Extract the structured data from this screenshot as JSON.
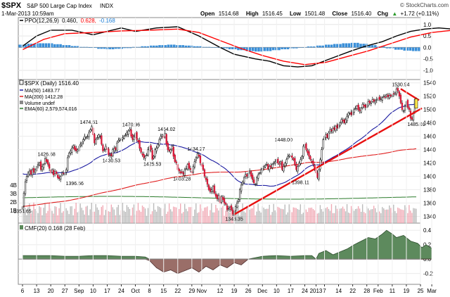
{
  "header": {
    "symbol": "$SPX",
    "name": "S&P 500 Large Cap Index",
    "exchange": "INDX",
    "datetime": "1-Mar-2013 10:59am",
    "open_label": "Open",
    "open": "1514.68",
    "high_label": "High",
    "high": "1516.45",
    "low_label": "Low",
    "low": "1501.48",
    "close_label": "Close",
    "close": "1516.40",
    "change_label": "Chg",
    "change": "+1.72 (+0.11%)",
    "up_arrow": "▲",
    "credit": "© StockCharts.com"
  },
  "chart_data": [
    {
      "type": "line",
      "panel": "PPO",
      "legend": {
        "ppo": "PPO(12,26,9)",
        "ppo_value": "0.460,",
        "signal_value": "0.628,",
        "hist_value": "-0.168"
      },
      "ylim": [
        -1.4,
        1.3
      ],
      "y_ticks": [
        "1.0",
        "0.5",
        "0.0",
        "-0.5",
        "-1.0"
      ],
      "series": [
        {
          "name": "PPO(12,26,9)",
          "color": "#000000",
          "points": [
            [
              0,
              0.05
            ],
            [
              10,
              0.5
            ],
            [
              20,
              0.75
            ],
            [
              35,
              0.75
            ],
            [
              50,
              0.55
            ],
            [
              60,
              0.7
            ],
            [
              70,
              0.85
            ],
            [
              80,
              0.7
            ],
            [
              95,
              0.85
            ],
            [
              110,
              0.9
            ],
            [
              125,
              0.5
            ],
            [
              140,
              0.0
            ],
            [
              150,
              -0.3
            ],
            [
              165,
              -0.5
            ],
            [
              175,
              -0.6
            ],
            [
              185,
              -0.8
            ],
            [
              195,
              -0.85
            ],
            [
              205,
              -0.8
            ],
            [
              220,
              -0.45
            ],
            [
              233,
              -0.15
            ],
            [
              243,
              0.05
            ],
            [
              255,
              0.25
            ],
            [
              265,
              0.5
            ],
            [
              275,
              0.7
            ],
            [
              285,
              0.8
            ],
            [
              295,
              0.85
            ],
            [
              305,
              0.8
            ],
            [
              320,
              0.7
            ],
            [
              330,
              0.6
            ]
          ]
        },
        {
          "name": "Signal",
          "color": "#ff0000",
          "points": [
            [
              0,
              -0.1
            ],
            [
              15,
              0.35
            ],
            [
              30,
              0.6
            ],
            [
              50,
              0.65
            ],
            [
              70,
              0.72
            ],
            [
              90,
              0.75
            ],
            [
              110,
              0.8
            ],
            [
              125,
              0.65
            ],
            [
              140,
              0.3
            ],
            [
              155,
              -0.05
            ],
            [
              170,
              -0.35
            ],
            [
              185,
              -0.6
            ],
            [
              200,
              -0.75
            ],
            [
              215,
              -0.65
            ],
            [
              230,
              -0.4
            ],
            [
              245,
              -0.15
            ],
            [
              260,
              0.15
            ],
            [
              275,
              0.45
            ],
            [
              290,
              0.65
            ],
            [
              305,
              0.75
            ],
            [
              320,
              0.75
            ],
            [
              330,
              0.75
            ]
          ]
        }
      ],
      "histogram": [
        0.12,
        0.16,
        0.18,
        0.18,
        0.14,
        0.1,
        0.06,
        0.02,
        -0.02,
        -0.06,
        -0.08,
        -0.06,
        -0.03,
        0.02,
        0.05,
        0.08,
        0.1,
        0.12,
        0.1,
        0.08,
        0.05,
        0.02,
        0.0,
        -0.04,
        -0.08,
        -0.12,
        -0.16,
        -0.18,
        -0.16,
        -0.12,
        -0.08,
        -0.04,
        0.0,
        0.04,
        0.08,
        0.12,
        0.15,
        0.18,
        0.2,
        0.16,
        0.1,
        0.04,
        -0.04,
        -0.1,
        -0.14,
        -0.16
      ]
    },
    {
      "type": "candlestick",
      "panel": "Price",
      "legend": {
        "price": "$SPX (Daily) 1516.40",
        "ma50": "MA(50) 1483.77",
        "ma200": "MA(200) 1412.28",
        "volume": "Volume undef",
        "ema60": "EMA(60) 2,579,574,016"
      },
      "ylim": [
        1330,
        1545
      ],
      "y_ticks": [
        "1540",
        "1520",
        "1500",
        "1480",
        "1460",
        "1440",
        "1420",
        "1400",
        "1380",
        "1360",
        "1340"
      ],
      "volume_ticks": [
        "4B",
        "3B",
        "2B",
        "1B"
      ],
      "annotations": [
        {
          "text": "1354.65",
          "x": 0,
          "y": 1354.65
        },
        {
          "text": "1426.68",
          "x": 17,
          "y": 1426.68
        },
        {
          "text": "1396.56",
          "x": 37,
          "y": 1396.56
        },
        {
          "text": "1474.51",
          "x": 47,
          "y": 1474.51
        },
        {
          "text": "1430.53",
          "x": 63,
          "y": 1430.53
        },
        {
          "text": "1470.96",
          "x": 77,
          "y": 1470.96
        },
        {
          "text": "1425.53",
          "x": 92,
          "y": 1425.53
        },
        {
          "text": "1464.02",
          "x": 102,
          "y": 1464.02
        },
        {
          "text": "1403.28",
          "x": 113,
          "y": 1403.28
        },
        {
          "text": "1434.27",
          "x": 123,
          "y": 1434.27
        },
        {
          "text": "1343.35",
          "x": 150,
          "y": 1343.35
        },
        {
          "text": "1448.00",
          "x": 185,
          "y": 1448.0
        },
        {
          "text": "1398.11",
          "x": 197,
          "y": 1398.11
        },
        {
          "text": "1530.94",
          "x": 268,
          "y": 1530.94
        },
        {
          "text": "1485.01",
          "x": 279,
          "y": 1485.01
        }
      ],
      "close": [
        1354.65,
        1375,
        1392,
        1400,
        1405,
        1408,
        1403,
        1410,
        1406,
        1410,
        1415,
        1418,
        1420,
        1410,
        1415,
        1418,
        1426.68,
        1422,
        1418,
        1412,
        1405,
        1410,
        1402,
        1407,
        1404,
        1398,
        1396.56,
        1400,
        1405,
        1404,
        1405,
        1410,
        1428,
        1435,
        1438,
        1442,
        1446,
        1440,
        1438,
        1440,
        1445,
        1448,
        1450,
        1455,
        1460,
        1458,
        1460,
        1465,
        1470,
        1474.51,
        1462,
        1450,
        1455,
        1458,
        1462,
        1460,
        1448,
        1438,
        1440,
        1445,
        1440,
        1432,
        1432,
        1430.53,
        1440,
        1442,
        1440,
        1450,
        1454,
        1456,
        1455,
        1458,
        1460,
        1462,
        1465,
        1468,
        1470.96,
        1460,
        1455,
        1460,
        1465,
        1455,
        1452,
        1442,
        1436,
        1432,
        1428,
        1430,
        1432,
        1440,
        1445,
        1440,
        1425.53,
        1430,
        1440,
        1442,
        1448,
        1455,
        1460,
        1462,
        1458,
        1464.02,
        1448,
        1440,
        1438,
        1440,
        1445,
        1430,
        1422,
        1420,
        1410,
        1408,
        1405,
        1406,
        1403.28,
        1410,
        1412,
        1418,
        1412,
        1410,
        1405,
        1415,
        1422,
        1428,
        1434.27,
        1430,
        1420,
        1415,
        1410,
        1400,
        1395,
        1388,
        1380,
        1377,
        1380,
        1385,
        1375,
        1370,
        1366,
        1372,
        1360,
        1370,
        1365,
        1360,
        1358,
        1350,
        1352,
        1354,
        1350,
        1343.35,
        1348,
        1355,
        1360,
        1365,
        1380,
        1387,
        1392,
        1398,
        1403,
        1400,
        1405,
        1408,
        1400,
        1395,
        1390,
        1388,
        1398,
        1402,
        1405,
        1410,
        1412,
        1415,
        1416,
        1418,
        1412,
        1415,
        1414,
        1418,
        1420,
        1422,
        1425,
        1420,
        1418,
        1422,
        1410,
        1415,
        1420,
        1425,
        1430,
        1432,
        1430,
        1428,
        1425,
        1418,
        1410,
        1415,
        1420,
        1425,
        1430,
        1445,
        1448.0,
        1440,
        1435,
        1430,
        1425,
        1422,
        1418,
        1412,
        1405,
        1398.11,
        1410,
        1425,
        1440,
        1455,
        1460,
        1462,
        1458,
        1465,
        1470,
        1468,
        1472,
        1470,
        1475,
        1472,
        1478,
        1480,
        1485,
        1483,
        1480,
        1485,
        1490,
        1495,
        1494,
        1492,
        1498,
        1500,
        1502,
        1505,
        1500,
        1498,
        1502,
        1508,
        1505,
        1503,
        1508,
        1512,
        1510,
        1510,
        1515,
        1512,
        1513,
        1515,
        1517,
        1515,
        1516,
        1518,
        1520,
        1518,
        1522,
        1519,
        1521,
        1520,
        1522,
        1523,
        1525,
        1530.94,
        1528,
        1520,
        1510,
        1500,
        1498,
        1505,
        1512,
        1503,
        1500,
        1487,
        1485.01,
        1495,
        1515,
        1516.4
      ]
    },
    {
      "type": "area",
      "panel": "CMF",
      "legend": "CMF(20) 0.168 (28 Feb)",
      "ylim": [
        -0.35,
        0.5
      ],
      "y_ticks": [
        "0.4",
        "0.2",
        "0.0",
        "-0.2"
      ],
      "series": [
        {
          "name": "CMF(20) 0.168 (28 Feb)",
          "points": [
            [
              0,
              0.05
            ],
            [
              10,
              0.05
            ],
            [
              20,
              0.05
            ],
            [
              30,
              0.04
            ],
            [
              40,
              0.04
            ],
            [
              50,
              0.05
            ],
            [
              60,
              0.05
            ],
            [
              70,
              0.04
            ],
            [
              80,
              0.04
            ],
            [
              87,
              0.03
            ],
            [
              90,
              -0.02
            ],
            [
              95,
              -0.12
            ],
            [
              100,
              -0.18
            ],
            [
              105,
              -0.15
            ],
            [
              110,
              -0.2
            ],
            [
              115,
              -0.16
            ],
            [
              120,
              -0.12
            ],
            [
              125,
              -0.18
            ],
            [
              130,
              -0.1
            ],
            [
              135,
              -0.15
            ],
            [
              140,
              -0.08
            ],
            [
              145,
              -0.12
            ],
            [
              150,
              -0.05
            ],
            [
              155,
              -0.08
            ],
            [
              160,
              0.0
            ],
            [
              165,
              0.02
            ],
            [
              170,
              0.04
            ],
            [
              180,
              0.05
            ],
            [
              190,
              0.04
            ],
            [
              200,
              0.05
            ],
            [
              205,
              0.05
            ],
            [
              208,
              0.0
            ],
            [
              210,
              0.08
            ],
            [
              215,
              0.12
            ],
            [
              220,
              0.06
            ],
            [
              225,
              0.1
            ],
            [
              230,
              0.14
            ],
            [
              235,
              0.2
            ],
            [
              240,
              0.25
            ],
            [
              245,
              0.3
            ],
            [
              250,
              0.28
            ],
            [
              255,
              0.35
            ],
            [
              258,
              0.4
            ],
            [
              262,
              0.35
            ],
            [
              265,
              0.3
            ],
            [
              270,
              0.33
            ],
            [
              275,
              0.25
            ],
            [
              280,
              0.22
            ],
            [
              283,
              0.16
            ],
            [
              286,
              0.2
            ],
            [
              290,
              0.15
            ]
          ]
        }
      ]
    }
  ],
  "x_axis": {
    "ticks": [
      {
        "label": "6",
        "i": 0
      },
      {
        "label": "13",
        "i": 10
      },
      {
        "label": "20",
        "i": 20
      },
      {
        "label": "27",
        "i": 30
      },
      {
        "label": "Sep",
        "i": 40
      },
      {
        "label": "10",
        "i": 50
      },
      {
        "label": "17",
        "i": 60
      },
      {
        "label": "24",
        "i": 70
      },
      {
        "label": "Oct",
        "i": 80
      },
      {
        "label": "8",
        "i": 90
      },
      {
        "label": "15",
        "i": 100
      },
      {
        "label": "22",
        "i": 110
      },
      {
        "label": "29",
        "i": 120
      },
      {
        "label": "Nov",
        "i": 127
      },
      {
        "label": "12",
        "i": 140
      },
      {
        "label": "19",
        "i": 150
      },
      {
        "label": "26",
        "i": 160
      },
      {
        "label": "Dec",
        "i": 170
      },
      {
        "label": "10",
        "i": 180
      },
      {
        "label": "17",
        "i": 190
      },
      {
        "label": "24",
        "i": 200
      },
      {
        "label": "2013",
        "i": 208
      },
      {
        "label": "7",
        "i": 214
      },
      {
        "label": "14",
        "i": 224
      },
      {
        "label": "22",
        "i": 234
      },
      {
        "label": "28",
        "i": 244
      },
      {
        "label": "Feb",
        "i": 252
      },
      {
        "label": "11",
        "i": 262
      },
      {
        "label": "19",
        "i": 272
      },
      {
        "label": "25",
        "i": 282
      },
      {
        "label": "Mar",
        "i": 290
      }
    ]
  }
}
